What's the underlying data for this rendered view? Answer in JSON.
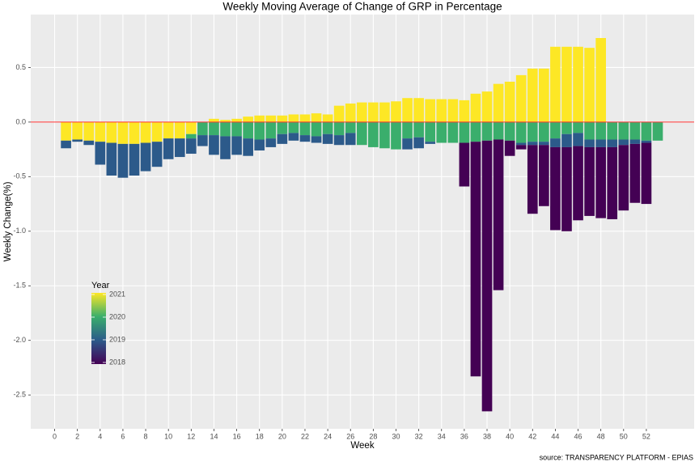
{
  "chart_data": {
    "type": "stacked-bar",
    "title": "Weekly Moving Average of Change of GRP in Percentage",
    "x_label": "Week",
    "y_label": "Weekly Change(%)",
    "caption": "source: TRANSPARENCY PLATFORM - EPIAS",
    "legend_title": "Year",
    "x": [
      1,
      2,
      3,
      4,
      5,
      6,
      7,
      8,
      9,
      10,
      11,
      12,
      13,
      14,
      15,
      16,
      17,
      18,
      19,
      20,
      21,
      22,
      23,
      24,
      25,
      26,
      27,
      28,
      29,
      30,
      31,
      32,
      33,
      34,
      35,
      36,
      37,
      38,
      39,
      40,
      41,
      42,
      43,
      44,
      45,
      46,
      47,
      48,
      49,
      50,
      51,
      52,
      53
    ],
    "series": [
      {
        "name": "2018",
        "color": "#440154",
        "values": [
          null,
          null,
          null,
          null,
          null,
          null,
          null,
          null,
          null,
          null,
          null,
          null,
          null,
          null,
          null,
          null,
          null,
          null,
          null,
          null,
          null,
          null,
          null,
          null,
          null,
          null,
          null,
          null,
          null,
          null,
          null,
          null,
          null,
          null,
          null,
          -0.4,
          -2.15,
          -2.48,
          -1.38,
          -0.14,
          -0.04,
          -0.63,
          -0.56,
          -0.76,
          -0.77,
          -0.68,
          -0.63,
          -0.65,
          -0.66,
          -0.6,
          -0.54,
          -0.56,
          null
        ]
      },
      {
        "name": "2019",
        "color": "#2c5a8a",
        "values": [
          -0.07,
          -0.02,
          -0.04,
          -0.21,
          -0.3,
          -0.31,
          -0.29,
          -0.26,
          -0.23,
          -0.19,
          -0.17,
          -0.14,
          -0.1,
          -0.18,
          -0.21,
          -0.17,
          -0.16,
          -0.1,
          -0.08,
          -0.09,
          -0.07,
          -0.06,
          -0.06,
          -0.09,
          -0.09,
          -0.11,
          null,
          null,
          null,
          null,
          -0.1,
          -0.1,
          -0.02,
          null,
          null,
          null,
          null,
          null,
          null,
          null,
          -0.02,
          -0.03,
          -0.03,
          -0.08,
          -0.12,
          -0.12,
          -0.07,
          -0.07,
          -0.07,
          -0.05,
          -0.04,
          -0.02,
          null
        ]
      },
      {
        "name": "2020",
        "color": "#3aae6c",
        "values": [
          null,
          null,
          null,
          null,
          null,
          null,
          null,
          null,
          null,
          null,
          null,
          -0.04,
          -0.12,
          -0.12,
          -0.13,
          -0.13,
          -0.15,
          -0.16,
          -0.15,
          -0.11,
          -0.1,
          -0.12,
          -0.13,
          -0.11,
          -0.12,
          -0.1,
          -0.21,
          -0.23,
          -0.24,
          -0.25,
          -0.15,
          -0.14,
          -0.18,
          -0.19,
          -0.19,
          -0.19,
          -0.18,
          -0.17,
          -0.16,
          -0.17,
          -0.19,
          -0.18,
          -0.18,
          -0.15,
          -0.11,
          -0.1,
          -0.16,
          -0.16,
          -0.16,
          -0.16,
          -0.16,
          -0.17,
          -0.17
        ]
      },
      {
        "name": "2021",
        "color": "#fde725",
        "values": [
          -0.17,
          -0.16,
          -0.17,
          -0.18,
          -0.19,
          -0.2,
          -0.2,
          -0.19,
          -0.18,
          -0.15,
          -0.15,
          -0.11,
          null,
          0.03,
          0.02,
          0.03,
          0.05,
          0.06,
          0.06,
          0.06,
          0.07,
          0.07,
          0.08,
          0.07,
          0.15,
          0.17,
          0.18,
          0.18,
          0.18,
          0.19,
          0.22,
          0.22,
          0.21,
          0.21,
          0.21,
          0.2,
          0.26,
          0.28,
          0.35,
          0.37,
          0.43,
          0.49,
          0.49,
          0.69,
          0.69,
          0.69,
          0.68,
          0.77,
          null,
          null,
          null,
          null,
          null
        ]
      }
    ],
    "xlim": [
      -2.1,
      56.2
    ],
    "xticks": [
      0,
      2,
      4,
      6,
      8,
      10,
      12,
      14,
      16,
      18,
      20,
      22,
      24,
      26,
      28,
      30,
      32,
      34,
      36,
      38,
      40,
      42,
      44,
      46,
      48,
      50,
      52
    ],
    "ylim": [
      -2.81,
      0.985
    ],
    "yticks": [
      -2.5,
      {
        "value": -2,
        "label": "-2.0"
      },
      -1.5,
      {
        "value": -1,
        "label": "-1.0"
      },
      -0.5,
      {
        "value": 0,
        "label": "0.0"
      },
      0.5
    ],
    "hline": {
      "value": 0,
      "color": "#ff3030"
    },
    "grid": true
  }
}
